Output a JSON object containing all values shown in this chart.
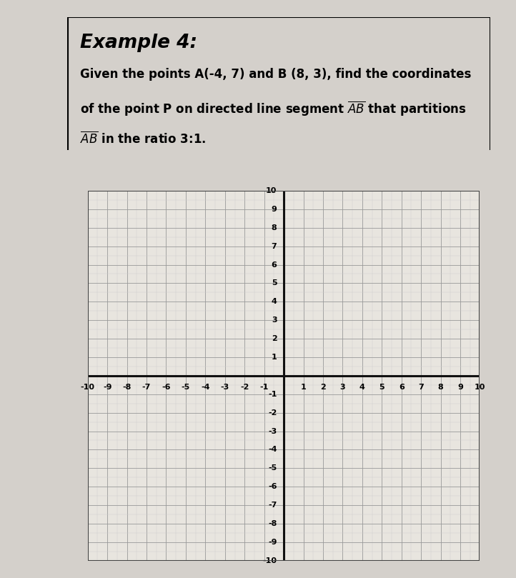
{
  "title": "Example 4:",
  "body_line1": "Given the points A(-4, 7) and B (8, 3), find the coordinates",
  "body_line2": "of the point P on directed line segment $\\overline{AB}$ that partitions",
  "body_line3": "$\\overline{AB}$ in the ratio 3:1.",
  "grid_min": -10,
  "grid_max": 10,
  "grid_color": "#999999",
  "minor_grid_color": "#cccccc",
  "axis_color": "#111111",
  "background_color": "#d4d0cb",
  "box_background": "#f0eeea",
  "grid_background": "#e8e5df",
  "tick_fontsize": 8,
  "title_fontsize": 19,
  "body_fontsize": 12,
  "fig_width": 7.22,
  "fig_height": 8.09
}
